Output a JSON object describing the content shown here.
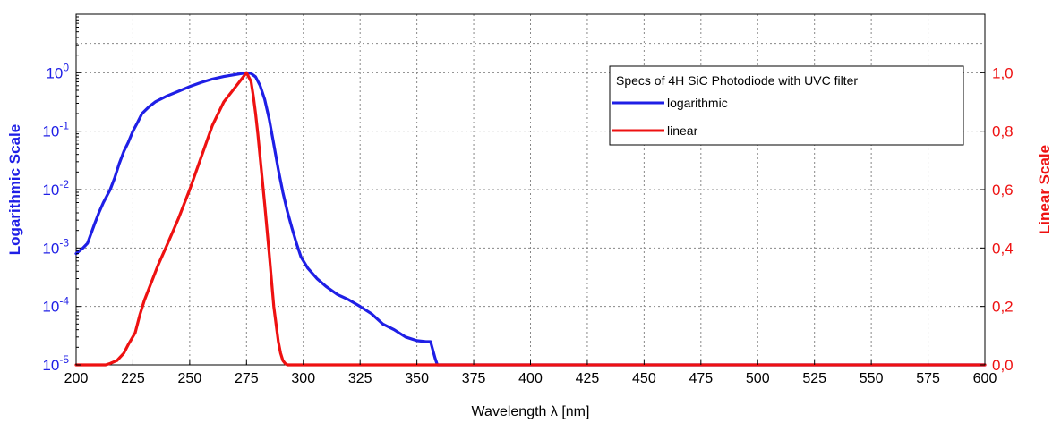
{
  "chart_data": {
    "type": "line",
    "title": "",
    "xlabel": "Wavelength λ [nm]",
    "ylabel_left": "Logarithmic Scale",
    "ylabel_right": "Linear Scale",
    "xlim": [
      200,
      600
    ],
    "x_ticks": [
      200,
      225,
      250,
      275,
      300,
      325,
      350,
      375,
      400,
      425,
      450,
      475,
      500,
      525,
      550,
      575,
      600
    ],
    "y_left": {
      "scale": "log",
      "lim": [
        1e-05,
        10
      ],
      "ticks": [
        {
          "value": 1,
          "base": "10",
          "exp": "0"
        },
        {
          "value": 0.1,
          "base": "10",
          "exp": "-1"
        },
        {
          "value": 0.01,
          "base": "10",
          "exp": "-2"
        },
        {
          "value": 0.001,
          "base": "10",
          "exp": "-3"
        },
        {
          "value": 0.0001,
          "base": "10",
          "exp": "-4"
        },
        {
          "value": 1e-05,
          "base": "10",
          "exp": "-5"
        }
      ]
    },
    "y_right": {
      "scale": "linear",
      "lim": [
        0,
        1.2
      ],
      "ticks": [
        {
          "value": 0.0,
          "label": "0,0"
        },
        {
          "value": 0.2,
          "label": "0,2"
        },
        {
          "value": 0.4,
          "label": "0,4"
        },
        {
          "value": 0.6,
          "label": "0,6"
        },
        {
          "value": 0.8,
          "label": "0,8"
        },
        {
          "value": 1.0,
          "label": "1,0"
        }
      ]
    },
    "grid": true,
    "legend": {
      "title": "Specs of 4H SiC Photodiode with UVC filter",
      "placement": "top-right"
    },
    "series": [
      {
        "name": "logarithmic",
        "axis": "left",
        "color": "#1f1fe6",
        "x": [
          200,
          203,
          205,
          208,
          210,
          212,
          215,
          217,
          219,
          221,
          223,
          225,
          227,
          229,
          232,
          235,
          240,
          245,
          250,
          255,
          260,
          265,
          270,
          273,
          275,
          277,
          279,
          281,
          283,
          285,
          287,
          289,
          291,
          293,
          295,
          297,
          299,
          302,
          306,
          310,
          315,
          320,
          325,
          330,
          335,
          340,
          345,
          350,
          354,
          356,
          357,
          358,
          359,
          360,
          400,
          450,
          500,
          550,
          600
        ],
        "y": [
          0.0008,
          0.001,
          0.0012,
          0.0025,
          0.004,
          0.006,
          0.01,
          0.016,
          0.028,
          0.045,
          0.065,
          0.1,
          0.14,
          0.2,
          0.26,
          0.32,
          0.4,
          0.48,
          0.58,
          0.68,
          0.78,
          0.86,
          0.93,
          0.97,
          1.0,
          0.97,
          0.85,
          0.6,
          0.35,
          0.16,
          0.06,
          0.022,
          0.009,
          0.0042,
          0.0022,
          0.0012,
          0.0007,
          0.00045,
          0.0003,
          0.00022,
          0.00016,
          0.00013,
          0.0001,
          7.5e-05,
          5e-05,
          4e-05,
          3e-05,
          2.6e-05,
          2.5e-05,
          2.5e-05,
          1.8e-05,
          1.3e-05,
          1e-05,
          1e-05,
          1e-05,
          1e-05,
          1e-05,
          1e-05,
          1e-05
        ]
      },
      {
        "name": "linear",
        "axis": "right",
        "color": "#ee1111",
        "x": [
          200,
          213,
          215,
          218,
          221,
          223,
          226,
          228,
          230,
          233,
          236,
          240,
          245,
          250,
          255,
          260,
          265,
          270,
          273,
          275,
          277,
          278,
          279,
          280,
          281,
          283,
          285,
          287,
          289,
          290,
          291,
          292,
          293,
          295,
          300,
          400,
          500,
          600
        ],
        "y": [
          0.0,
          0.0,
          0.005,
          0.015,
          0.04,
          0.07,
          0.11,
          0.17,
          0.22,
          0.28,
          0.34,
          0.41,
          0.5,
          0.6,
          0.71,
          0.82,
          0.9,
          0.95,
          0.98,
          1.0,
          0.97,
          0.92,
          0.86,
          0.79,
          0.71,
          0.55,
          0.38,
          0.2,
          0.08,
          0.04,
          0.015,
          0.005,
          0.0,
          0.0,
          0.0,
          0.0,
          0.0,
          0.0
        ]
      }
    ]
  }
}
